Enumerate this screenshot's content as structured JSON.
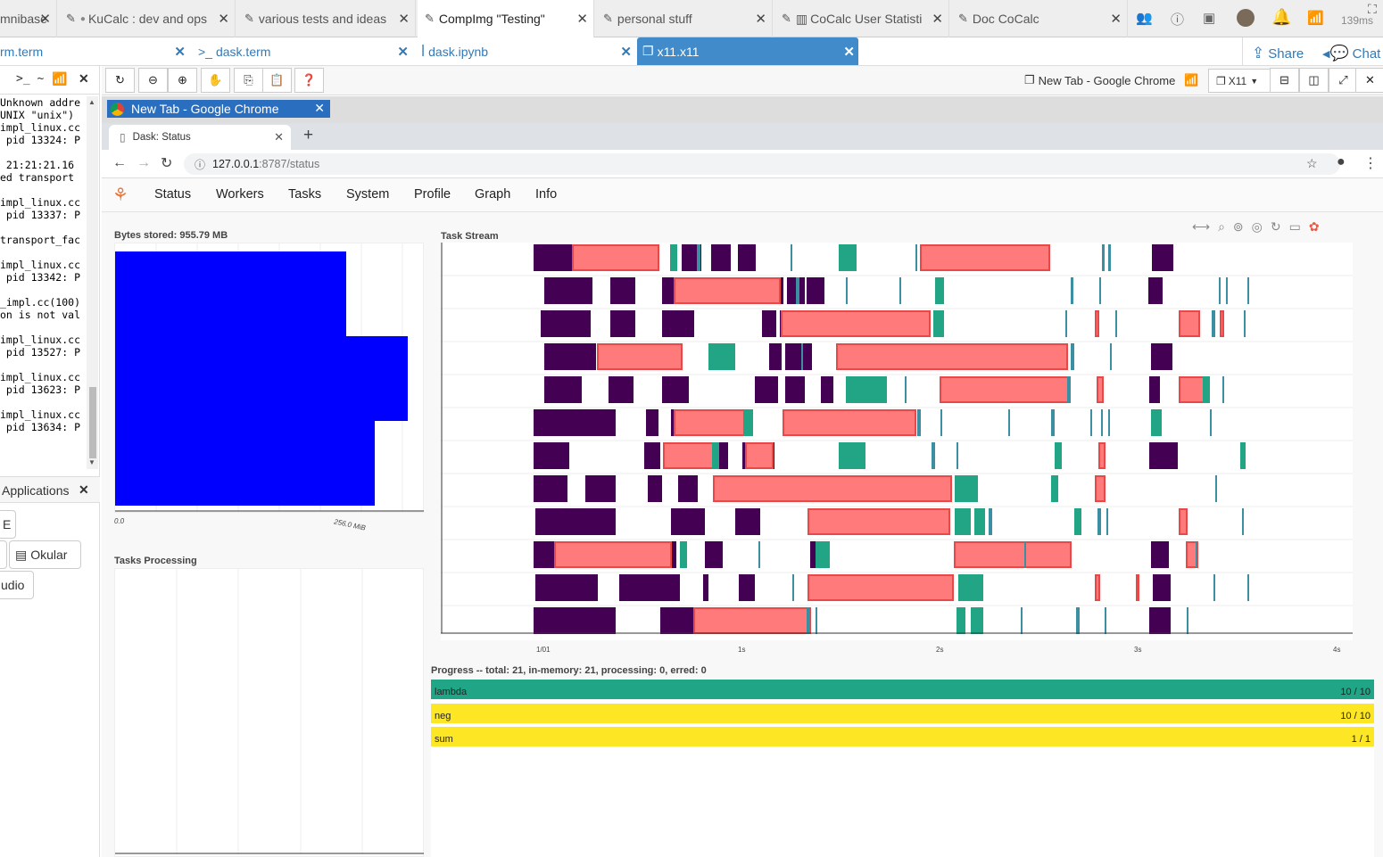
{
  "top_tabs": [
    {
      "label": "mnibase"
    },
    {
      "label": "KuCalc : dev and ops"
    },
    {
      "label": "various tests and ideas"
    },
    {
      "label": "CompImg \"Testing\""
    },
    {
      "label": "personal stuff"
    },
    {
      "label": "CoCalc User Statisti"
    },
    {
      "label": "Doc CoCalc"
    }
  ],
  "ping": "139ms",
  "file_tabs": [
    {
      "label": "rm.term"
    },
    {
      "label": "dask.term"
    },
    {
      "label": "dask.ipynb"
    },
    {
      "label": "x11.x11"
    }
  ],
  "share_label": "Share",
  "chat_label": "Chat",
  "terminal": {
    "prompt": ">_ ~",
    "lines": [
      "Unknown addre",
      "UNIX \"unix\")",
      "impl_linux.cc",
      " pid 13324: P",
      "",
      " 21:21:21.16",
      "ed transport",
      "",
      "impl_linux.cc",
      " pid 13337: P",
      "",
      "transport_fac",
      "",
      "impl_linux.cc",
      " pid 13342: P",
      "",
      "_impl.cc(100)",
      "on is not val",
      "",
      "impl_linux.cc",
      " pid 13527: P",
      "",
      "impl_linux.cc",
      " pid 13623: P",
      "",
      "impl_linux.cc",
      " pid 13634: P"
    ]
  },
  "applications_label": "Applications",
  "apps": [
    {
      "label": "E"
    },
    {
      "label": "Okular"
    },
    {
      "label": "udio"
    }
  ],
  "x11": {
    "window_title": "New Tab - Google Chrome",
    "selector_label": "X11"
  },
  "chrome": {
    "title": "New Tab - Google Chrome",
    "tab_label": "Dask: Status",
    "url_host": "127.0.0.1",
    "url_path": ":8787/status"
  },
  "dask_nav": [
    "Status",
    "Workers",
    "Tasks",
    "System",
    "Profile",
    "Graph",
    "Info"
  ],
  "bytes_title": "Bytes stored: 955.79 MB",
  "bytes_ticks": [
    "0.0",
    "256.0 MiB"
  ],
  "tasks_processing_title": "Tasks Processing",
  "task_stream_title": "Task Stream",
  "task_stream_ticks": [
    "1/01",
    "1s",
    "2s",
    "3s",
    "4s"
  ],
  "progress_title": "Progress -- total: 21, in-memory: 21, processing: 0, erred: 0",
  "progress": [
    {
      "name": "lambda",
      "count": "10 / 10",
      "fraction": 1.0,
      "color": "#20a587"
    },
    {
      "name": "neg",
      "count": "10 / 10",
      "fraction": 1.0,
      "color": "#fde725"
    },
    {
      "name": "sum",
      "count": "1 / 1",
      "fraction": 1.0,
      "color": "#fde725"
    }
  ],
  "colors": {
    "bytes_bar": "#0000ff",
    "task_purple": "#440154",
    "task_green": "#21a585",
    "task_red": "#ff7b7b",
    "active_file_tab": "#428bca"
  }
}
